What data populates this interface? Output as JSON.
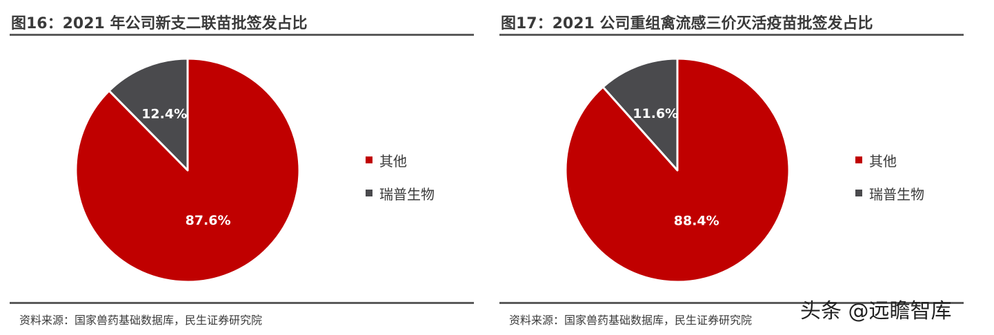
{
  "watermark": "头条 @远瞻智库",
  "colors": {
    "red": "#c00000",
    "gray": "#4a4a4d"
  },
  "chart_data": [
    {
      "type": "pie",
      "title": "图16：2021 年公司新支二联苗批签发占比",
      "source": "资料来源：国家兽药基础数据库，民生证券研究院",
      "slices": [
        {
          "label": "瑞普生物",
          "value": 12.4,
          "display": "12.4%",
          "color": "#4a4a4d"
        },
        {
          "label": "其他",
          "value": 87.6,
          "display": "87.6%",
          "color": "#c00000"
        }
      ],
      "legend": [
        "其他",
        "瑞普生物"
      ],
      "legend_position": "right"
    },
    {
      "type": "pie",
      "title": "图17：2021 公司重组禽流感三价灭活疫苗批签发占比",
      "source": "资料来源：国家兽药基础数据库，民生证券研究院",
      "slices": [
        {
          "label": "瑞普生物",
          "value": 11.6,
          "display": "11.6%",
          "color": "#4a4a4d"
        },
        {
          "label": "其他",
          "value": 88.4,
          "display": "88.4%",
          "color": "#c00000"
        }
      ],
      "legend": [
        "其他",
        "瑞普生物"
      ],
      "legend_position": "right"
    }
  ]
}
